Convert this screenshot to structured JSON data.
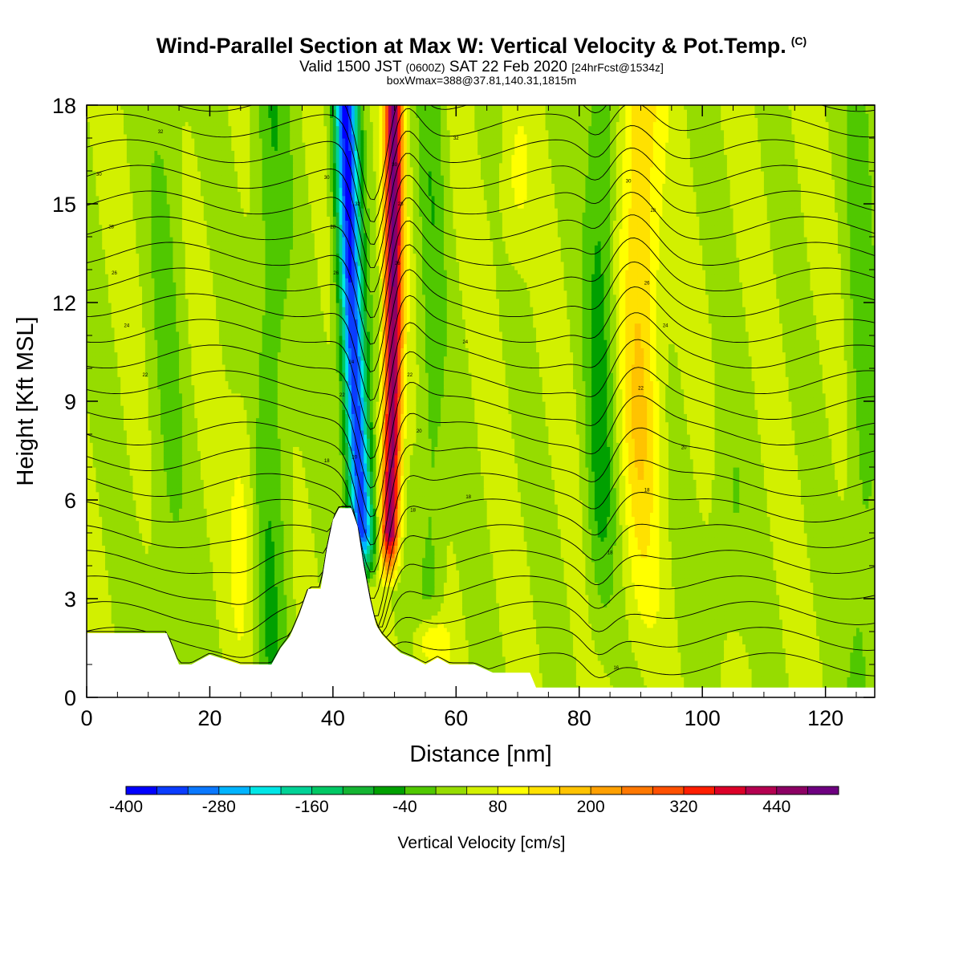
{
  "header": {
    "title": "Wind-Parallel Section at Max W: Vertical Velocity & Pot.Temp.",
    "copyright": "(C)",
    "valid_prefix": "Valid 1500 JST",
    "valid_utc": "(0600Z)",
    "valid_date": "SAT 22 Feb 2020",
    "forecast": "[24hrFcst@1534z]",
    "boxw": "boxWmax=388@37.81,140.31,1815m"
  },
  "chart_data": {
    "type": "heatmap",
    "xlabel": "Distance [nm]",
    "ylabel": "Height [Kft MSL]",
    "xlim": [
      0,
      128
    ],
    "ylim": [
      0,
      18
    ],
    "xticks": [
      "0",
      "20",
      "40",
      "60",
      "80",
      "100",
      "120"
    ],
    "yticks": [
      "0",
      "3",
      "6",
      "9",
      "12",
      "15",
      "18"
    ],
    "colorbar": {
      "title": "Vertical Velocity [cm/s]",
      "min": -400,
      "max": 480,
      "step": 40,
      "tick_labels": [
        "-400",
        "-280",
        "-160",
        "-40",
        "80",
        "200",
        "320",
        "440"
      ],
      "colors": [
        "#0000ff",
        "#0a3cff",
        "#0a78ff",
        "#00b4ff",
        "#00e6e6",
        "#00d296",
        "#00c864",
        "#14b432",
        "#00a000",
        "#50c800",
        "#96dc00",
        "#d2f000",
        "#ffff00",
        "#ffe100",
        "#ffc300",
        "#ffa000",
        "#ff7800",
        "#ff5000",
        "#ff1e00",
        "#dc0028",
        "#b40050",
        "#8c0064",
        "#6e0080"
      ]
    },
    "terrain_kft": [
      [
        0,
        1.95
      ],
      [
        13,
        1.95
      ],
      [
        15,
        1.0
      ],
      [
        17,
        1.0
      ],
      [
        20,
        1.3
      ],
      [
        25,
        1.0
      ],
      [
        30,
        1.0
      ],
      [
        31.5,
        1.5
      ],
      [
        33,
        1.85
      ],
      [
        34.5,
        2.5
      ],
      [
        36,
        3.3
      ],
      [
        38,
        3.3
      ],
      [
        39,
        4.5
      ],
      [
        40,
        5.4
      ],
      [
        41,
        5.75
      ],
      [
        43,
        5.75
      ],
      [
        44,
        5.2
      ],
      [
        45,
        4.0
      ],
      [
        46,
        3.0
      ],
      [
        47,
        2.2
      ],
      [
        48,
        1.9
      ],
      [
        49.5,
        1.6
      ],
      [
        51,
        1.35
      ],
      [
        53,
        1.2
      ],
      [
        55,
        1.0
      ],
      [
        57,
        1.2
      ],
      [
        59,
        1.0
      ],
      [
        63,
        1.0
      ],
      [
        66,
        0.75
      ],
      [
        72,
        0.75
      ],
      [
        73,
        0.3
      ],
      [
        90,
        0.3
      ],
      [
        128,
        0.3
      ]
    ],
    "wave_max_cm_s": 388,
    "downdraft_min_cm_s": -390,
    "theta_labels": [
      {
        "text": "32",
        "x": 12,
        "y": 17.2
      },
      {
        "text": "30",
        "x": 2,
        "y": 15.9
      },
      {
        "text": "28",
        "x": 4,
        "y": 14.3
      },
      {
        "text": "26",
        "x": 4.5,
        "y": 12.9
      },
      {
        "text": "24",
        "x": 6.5,
        "y": 11.3
      },
      {
        "text": "22",
        "x": 9.5,
        "y": 9.8
      },
      {
        "text": "18",
        "x": 39,
        "y": 7.2
      },
      {
        "text": "22",
        "x": 41.5,
        "y": 9.2
      },
      {
        "text": "24",
        "x": 43,
        "y": 10.2
      },
      {
        "text": "26",
        "x": 40.5,
        "y": 12.9
      },
      {
        "text": "28",
        "x": 40,
        "y": 14.3
      },
      {
        "text": "30",
        "x": 39,
        "y": 15.8
      },
      {
        "text": "32",
        "x": 44,
        "y": 15.0
      },
      {
        "text": "20",
        "x": 43.5,
        "y": 7.3
      },
      {
        "text": "30",
        "x": 50,
        "y": 16.2
      },
      {
        "text": "28",
        "x": 51,
        "y": 15.0
      },
      {
        "text": "26",
        "x": 50.5,
        "y": 13.2
      },
      {
        "text": "22",
        "x": 52.5,
        "y": 9.8
      },
      {
        "text": "20",
        "x": 54,
        "y": 8.1
      },
      {
        "text": "18",
        "x": 53,
        "y": 5.7
      },
      {
        "text": "32",
        "x": 60,
        "y": 17.0
      },
      {
        "text": "24",
        "x": 61.5,
        "y": 10.8
      },
      {
        "text": "18",
        "x": 62,
        "y": 6.1
      },
      {
        "text": "30",
        "x": 88,
        "y": 15.7
      },
      {
        "text": "28",
        "x": 92,
        "y": 14.8
      },
      {
        "text": "26",
        "x": 91,
        "y": 12.6
      },
      {
        "text": "24",
        "x": 94,
        "y": 11.3
      },
      {
        "text": "22",
        "x": 90,
        "y": 9.4
      },
      {
        "text": "20",
        "x": 97,
        "y": 7.6
      },
      {
        "text": "18",
        "x": 91,
        "y": 6.3
      },
      {
        "text": "18",
        "x": 85,
        "y": 4.4
      },
      {
        "text": "16",
        "x": 86,
        "y": 0.9
      }
    ]
  }
}
